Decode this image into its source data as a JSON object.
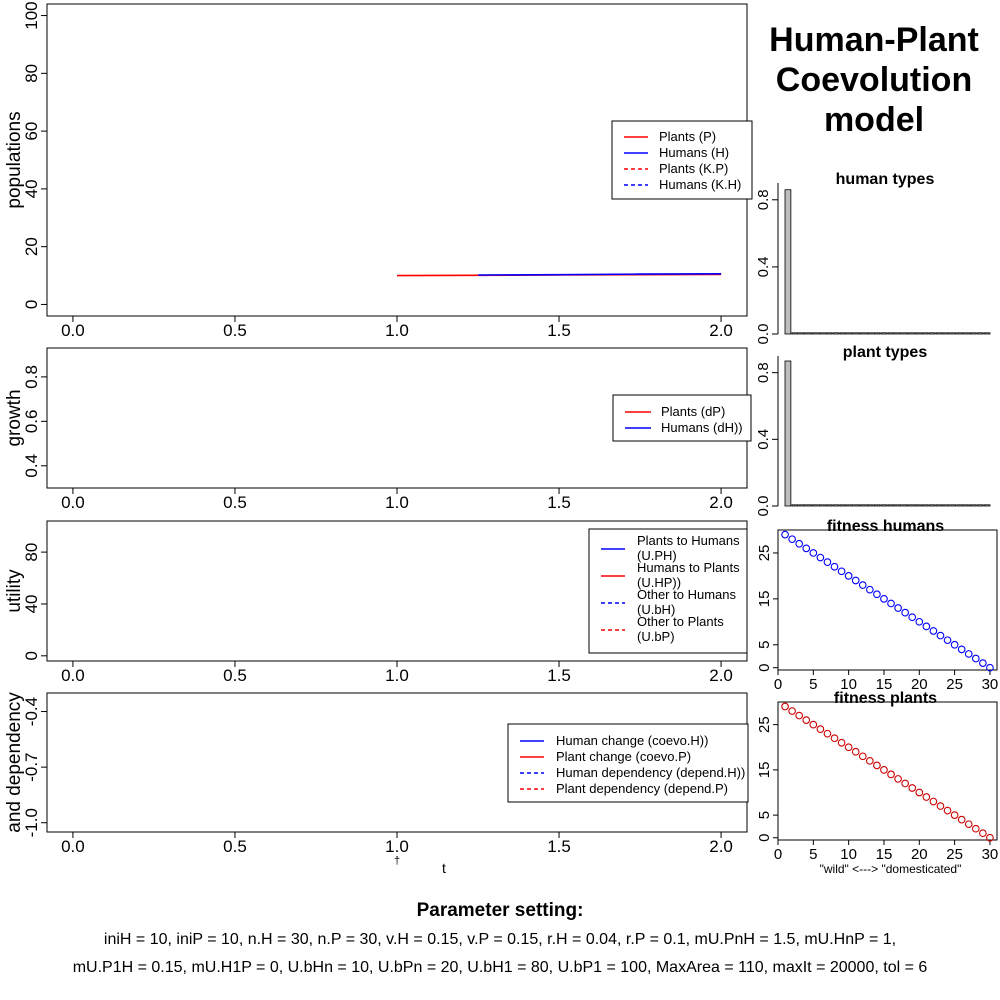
{
  "title_lines": [
    "Human-Plant",
    "Coevolution",
    "model"
  ],
  "params": {
    "heading": "Parameter setting:",
    "line1": "iniH = 10, iniP = 10, n.H = 30, n.P = 30, v.H = 0.15, v.P = 0.15, r.H = 0.04, r.P = 0.1, mU.PnH = 1.5, mU.HnP = 1,",
    "line2": "mU.P1H = 0.15, mU.H1P = 0, U.bHn = 10, U.bPn = 20, U.bH1 = 80, U.bP1 = 100, MaxArea = 110, maxIt = 20000, tol = 6"
  },
  "colors": {
    "plants": "#ff0000",
    "humans": "#0000ff",
    "dark": "#000000",
    "bar_fill": "#bebebe",
    "fit_humans": "#0000ff",
    "fit_plants": "#cc0000"
  },
  "chart_data": [
    {
      "id": "populations",
      "type": "line",
      "ylabel": "populations",
      "xlabel": "",
      "xlim": [
        -0.08,
        2.08
      ],
      "ylim": [
        -4,
        104
      ],
      "xticks": [
        "0.0",
        "0.5",
        "1.0",
        "1.5",
        "2.0"
      ],
      "yticks": [
        "0",
        "20",
        "40",
        "60",
        "80",
        "100"
      ],
      "series": [
        {
          "name": "Plants (P)",
          "color": "#ff0000",
          "dash": false,
          "x": [
            1.0,
            1.25,
            1.5,
            1.75,
            2.0
          ],
          "y": [
            10.0,
            10.1,
            10.2,
            10.3,
            10.4
          ]
        },
        {
          "name": "Humans (H)",
          "color": "#0000ff",
          "dash": false,
          "x": [
            1.25,
            1.5,
            1.75,
            2.0
          ],
          "y": [
            10.2,
            10.3,
            10.5,
            10.6
          ]
        },
        {
          "name": "Plants (K.P)",
          "color": "#ff0000",
          "dash": true,
          "x": [],
          "y": []
        },
        {
          "name": "Humans (K.H)",
          "color": "#0000ff",
          "dash": true,
          "x": [],
          "y": []
        }
      ],
      "legend": "right"
    },
    {
      "id": "growth",
      "type": "line",
      "ylabel": "growth",
      "xlabel": "",
      "xlim": [
        -0.08,
        2.08
      ],
      "ylim": [
        0.3,
        0.93
      ],
      "xticks": [
        "0.0",
        "0.5",
        "1.0",
        "1.5",
        "2.0"
      ],
      "yticks": [
        "0.4",
        "0.6",
        "0.8"
      ],
      "series": [
        {
          "name": "Plants (dP)",
          "color": "#ff0000",
          "dash": false,
          "x": [],
          "y": []
        },
        {
          "name": "Humans (dH))",
          "color": "#0000ff",
          "dash": false,
          "x": [],
          "y": []
        }
      ],
      "legend": "right"
    },
    {
      "id": "utility",
      "type": "line",
      "ylabel": "utility",
      "xlabel": "",
      "xlim": [
        -0.08,
        2.08
      ],
      "ylim": [
        -4,
        104
      ],
      "xticks": [
        "0.0",
        "0.5",
        "1.0",
        "1.5",
        "2.0"
      ],
      "yticks": [
        "0",
        "40",
        "80"
      ],
      "series": [
        {
          "name": "Plants to Humans (U.PH)",
          "color": "#0000ff",
          "dash": false,
          "x": [],
          "y": []
        },
        {
          "name": "Humans to Plants (U.HP))",
          "color": "#ff0000",
          "dash": false,
          "x": [],
          "y": []
        },
        {
          "name": "Other to Humans (U.bH)",
          "color": "#0000ff",
          "dash": true,
          "x": [],
          "y": []
        },
        {
          "name": "Other to Plants (U.bP)",
          "color": "#ff0000",
          "dash": true,
          "x": [],
          "y": []
        }
      ],
      "legend": "right"
    },
    {
      "id": "dependency",
      "type": "line",
      "ylabel": "and dependency",
      "xlabel": "t",
      "xlim": [
        -0.08,
        2.08
      ],
      "ylim": [
        -1.05,
        -0.3
      ],
      "xticks": [
        "0.0",
        "0.5",
        "1.0",
        "1.5",
        "2.0"
      ],
      "yticks": [
        "-1.0",
        "-0.7",
        "-0.4"
      ],
      "series": [
        {
          "name": "Human change (coevo.H))",
          "color": "#0000ff",
          "dash": false,
          "x": [],
          "y": []
        },
        {
          "name": "Plant change (coevo.P)",
          "color": "#ff0000",
          "dash": false,
          "x": [],
          "y": []
        },
        {
          "name": "Human dependency (depend.H))",
          "color": "#0000ff",
          "dash": true,
          "x": [],
          "y": []
        },
        {
          "name": "Plant dependency (depend.P)",
          "color": "#ff0000",
          "dash": true,
          "x": [],
          "y": []
        }
      ],
      "legend": "right"
    },
    {
      "id": "human_types",
      "type": "bar",
      "title": "human types",
      "ylim": [
        0,
        0.9
      ],
      "yticks": [
        "0.0",
        "0.4",
        "0.8"
      ],
      "values": [
        0.86,
        0.005,
        0.004,
        0.004,
        0.004,
        0.003,
        0.003,
        0.003,
        0.003,
        0.003,
        0.002,
        0.002,
        0.002,
        0.002,
        0.002,
        0.002,
        0.002,
        0.002,
        0.002,
        0.002,
        0.002,
        0.002,
        0.002,
        0.002,
        0.002,
        0.002,
        0.002,
        0.002,
        0.002,
        0.002
      ]
    },
    {
      "id": "plant_types",
      "type": "bar",
      "title": "plant types",
      "ylim": [
        0,
        0.9
      ],
      "yticks": [
        "0.0",
        "0.4",
        "0.8"
      ],
      "values": [
        0.87,
        0.005,
        0.004,
        0.004,
        0.004,
        0.003,
        0.003,
        0.003,
        0.003,
        0.003,
        0.002,
        0.002,
        0.002,
        0.002,
        0.002,
        0.002,
        0.002,
        0.002,
        0.002,
        0.002,
        0.002,
        0.002,
        0.002,
        0.002,
        0.002,
        0.002,
        0.002,
        0.002,
        0.002,
        0.002
      ]
    },
    {
      "id": "fitness_humans",
      "type": "scatter",
      "title": "fitness humans",
      "xlim": [
        0,
        31
      ],
      "ylim": [
        -0.5,
        30
      ],
      "xticks": [
        "0",
        "5",
        "10",
        "15",
        "20",
        "25",
        "30"
      ],
      "yticks": [
        "0",
        "5",
        "15",
        "25"
      ],
      "x": [
        1,
        2,
        3,
        4,
        5,
        6,
        7,
        8,
        9,
        10,
        11,
        12,
        13,
        14,
        15,
        16,
        17,
        18,
        19,
        20,
        21,
        22,
        23,
        24,
        25,
        26,
        27,
        28,
        29,
        30
      ],
      "y": [
        29,
        28,
        27,
        26,
        25,
        24,
        23,
        22,
        21,
        20,
        19,
        18,
        17,
        16,
        15,
        14,
        13,
        12,
        11,
        10,
        9,
        8,
        7,
        6,
        5,
        4,
        3,
        2,
        1,
        0
      ]
    },
    {
      "id": "fitness_plants",
      "type": "scatter",
      "title": "fitness plants",
      "xlabel": "\"wild\" <---> \"domesticated\"",
      "xlim": [
        0,
        31
      ],
      "ylim": [
        -0.5,
        30
      ],
      "xticks": [
        "0",
        "5",
        "10",
        "15",
        "20",
        "25",
        "30"
      ],
      "yticks": [
        "0",
        "5",
        "15",
        "25"
      ],
      "x": [
        1,
        2,
        3,
        4,
        5,
        6,
        7,
        8,
        9,
        10,
        11,
        12,
        13,
        14,
        15,
        16,
        17,
        18,
        19,
        20,
        21,
        22,
        23,
        24,
        25,
        26,
        27,
        28,
        29,
        30
      ],
      "y": [
        29,
        28,
        27,
        26,
        25,
        24,
        23,
        22,
        21,
        20,
        19,
        18,
        17,
        16,
        15,
        14,
        13,
        12,
        11,
        10,
        9,
        8,
        7,
        6,
        5,
        4,
        3,
        2,
        1,
        0
      ]
    }
  ]
}
